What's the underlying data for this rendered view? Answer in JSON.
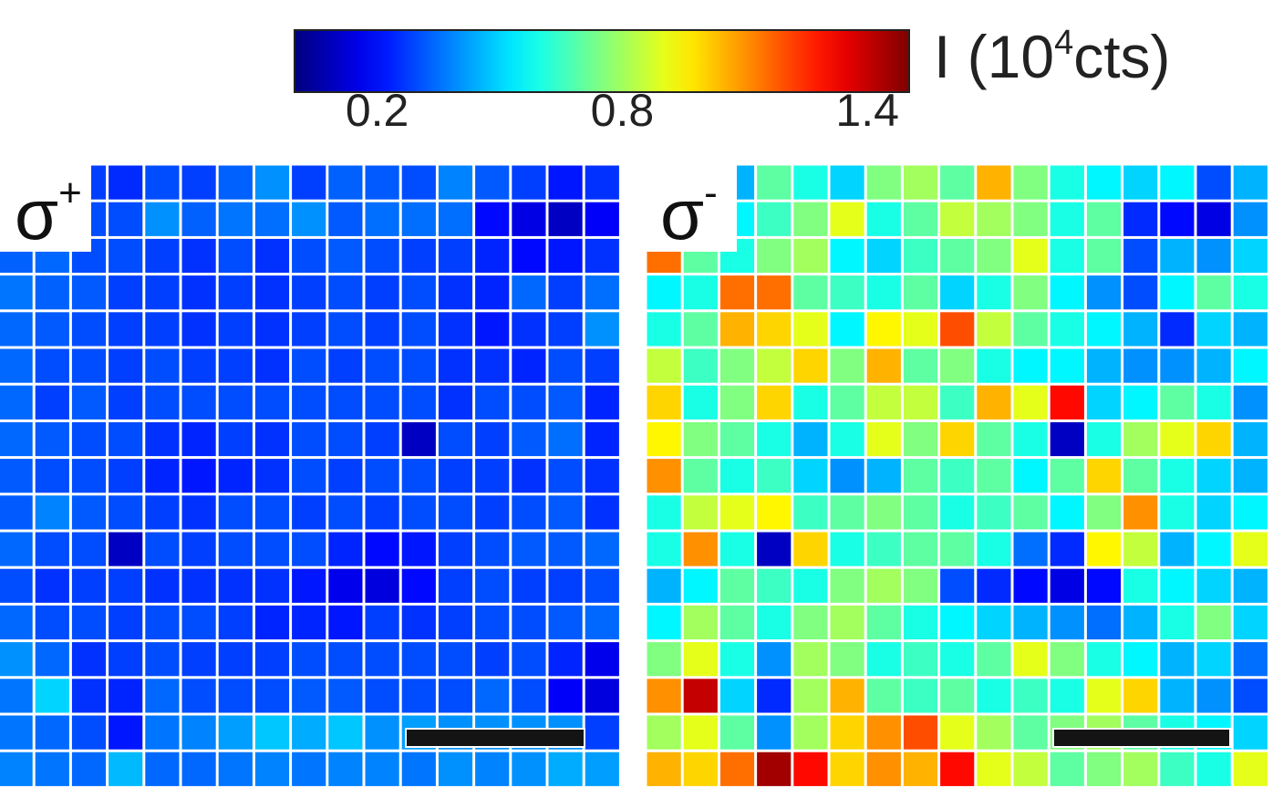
{
  "colorbar": {
    "label_main": "I (10",
    "label_sup": "4",
    "label_tail": "cts)",
    "ticks": [
      "0.2",
      "0.8",
      "1.4"
    ],
    "tick_values": [
      0.2,
      0.8,
      1.4
    ],
    "range": [
      0.0,
      1.5
    ],
    "colormap": "jet"
  },
  "panels": {
    "left": {
      "label": "σ",
      "sup": "+"
    },
    "right": {
      "label": "σ",
      "sup": "-"
    }
  },
  "chart_data": [
    {
      "type": "heatmap",
      "name_label": "σ+",
      "colormap": "jet",
      "zlim": [
        0.0,
        1.5
      ],
      "rows": 17,
      "cols": 17,
      "values": [
        [
          0.35,
          0.3,
          0.28,
          0.25,
          0.3,
          0.28,
          0.33,
          0.4,
          0.28,
          0.33,
          0.32,
          0.3,
          0.38,
          0.32,
          0.28,
          0.22,
          0.26
        ],
        [
          0.35,
          0.32,
          0.3,
          0.3,
          0.4,
          0.33,
          0.36,
          0.35,
          0.4,
          0.32,
          0.35,
          0.35,
          0.35,
          0.2,
          0.15,
          0.1,
          0.18
        ],
        [
          0.33,
          0.34,
          0.3,
          0.3,
          0.28,
          0.26,
          0.3,
          0.26,
          0.3,
          0.32,
          0.3,
          0.28,
          0.28,
          0.24,
          0.2,
          0.22,
          0.26
        ],
        [
          0.36,
          0.33,
          0.32,
          0.28,
          0.28,
          0.26,
          0.28,
          0.26,
          0.28,
          0.3,
          0.28,
          0.3,
          0.26,
          0.24,
          0.34,
          0.28,
          0.35
        ],
        [
          0.34,
          0.32,
          0.3,
          0.28,
          0.28,
          0.26,
          0.28,
          0.26,
          0.28,
          0.3,
          0.28,
          0.3,
          0.26,
          0.22,
          0.26,
          0.28,
          0.4
        ],
        [
          0.34,
          0.3,
          0.3,
          0.28,
          0.3,
          0.28,
          0.28,
          0.26,
          0.3,
          0.28,
          0.3,
          0.3,
          0.26,
          0.26,
          0.24,
          0.3,
          0.28
        ],
        [
          0.34,
          0.28,
          0.32,
          0.28,
          0.3,
          0.3,
          0.3,
          0.3,
          0.3,
          0.3,
          0.3,
          0.3,
          0.26,
          0.3,
          0.3,
          0.32,
          0.24
        ],
        [
          0.34,
          0.32,
          0.3,
          0.3,
          0.26,
          0.24,
          0.28,
          0.26,
          0.3,
          0.3,
          0.28,
          0.1,
          0.3,
          0.28,
          0.32,
          0.35,
          0.24
        ],
        [
          0.32,
          0.3,
          0.3,
          0.28,
          0.24,
          0.22,
          0.24,
          0.26,
          0.3,
          0.28,
          0.3,
          0.3,
          0.28,
          0.28,
          0.26,
          0.3,
          0.26
        ],
        [
          0.32,
          0.38,
          0.32,
          0.3,
          0.28,
          0.26,
          0.3,
          0.3,
          0.28,
          0.3,
          0.28,
          0.3,
          0.3,
          0.28,
          0.3,
          0.32,
          0.26
        ],
        [
          0.34,
          0.3,
          0.3,
          0.1,
          0.3,
          0.28,
          0.3,
          0.3,
          0.3,
          0.24,
          0.2,
          0.22,
          0.28,
          0.3,
          0.32,
          0.32,
          0.34
        ],
        [
          0.3,
          0.26,
          0.28,
          0.28,
          0.26,
          0.26,
          0.26,
          0.26,
          0.22,
          0.16,
          0.14,
          0.2,
          0.28,
          0.3,
          0.28,
          0.28,
          0.3
        ],
        [
          0.34,
          0.3,
          0.3,
          0.28,
          0.3,
          0.3,
          0.28,
          0.24,
          0.24,
          0.22,
          0.28,
          0.26,
          0.28,
          0.3,
          0.3,
          0.32,
          0.34
        ],
        [
          0.4,
          0.34,
          0.26,
          0.28,
          0.3,
          0.28,
          0.28,
          0.28,
          0.3,
          0.3,
          0.3,
          0.3,
          0.3,
          0.28,
          0.3,
          0.24,
          0.16
        ],
        [
          0.36,
          0.5,
          0.26,
          0.24,
          0.34,
          0.3,
          0.3,
          0.3,
          0.32,
          0.32,
          0.3,
          0.3,
          0.3,
          0.34,
          0.3,
          0.18,
          0.14
        ],
        [
          0.36,
          0.34,
          0.3,
          0.22,
          0.36,
          0.38,
          0.42,
          0.48,
          0.44,
          0.48,
          0.4,
          0.42,
          0.4,
          0.4,
          0.4,
          0.4,
          0.28
        ],
        [
          0.38,
          0.36,
          0.34,
          0.46,
          0.34,
          0.34,
          0.36,
          0.38,
          0.36,
          0.38,
          0.38,
          0.36,
          0.4,
          0.38,
          0.4,
          0.44,
          0.42
        ]
      ]
    },
    {
      "type": "heatmap",
      "name_label": "σ-",
      "colormap": "jet",
      "zlim": [
        0.0,
        1.5
      ],
      "rows": 17,
      "cols": 17,
      "values": [
        [
          0.5,
          0.55,
          0.45,
          0.7,
          0.6,
          0.5,
          0.75,
          0.8,
          0.7,
          1.05,
          0.75,
          0.6,
          0.55,
          0.5,
          0.55,
          0.3,
          0.45
        ],
        [
          0.55,
          0.6,
          0.55,
          0.65,
          0.75,
          0.9,
          0.6,
          0.7,
          0.85,
          0.8,
          0.75,
          0.6,
          0.7,
          0.25,
          0.2,
          0.15,
          0.4
        ],
        [
          1.15,
          0.7,
          0.6,
          0.75,
          0.8,
          0.55,
          0.5,
          0.65,
          0.7,
          0.75,
          0.9,
          0.6,
          0.7,
          0.3,
          0.45,
          0.4,
          0.5
        ],
        [
          0.55,
          0.6,
          1.15,
          1.15,
          0.7,
          0.65,
          0.6,
          0.7,
          0.5,
          0.6,
          0.75,
          0.55,
          0.4,
          0.3,
          0.55,
          0.7,
          0.6
        ],
        [
          0.6,
          0.7,
          1.05,
          1.0,
          0.9,
          0.55,
          0.95,
          0.9,
          1.2,
          0.85,
          0.7,
          0.6,
          0.55,
          0.45,
          0.25,
          0.5,
          0.45
        ],
        [
          0.85,
          0.65,
          0.75,
          0.85,
          1.0,
          0.75,
          1.05,
          0.7,
          0.75,
          0.6,
          0.55,
          0.55,
          0.45,
          0.4,
          0.4,
          0.45,
          0.55
        ],
        [
          1.0,
          0.6,
          0.75,
          1.0,
          0.6,
          0.7,
          0.85,
          0.85,
          0.65,
          1.05,
          0.9,
          1.3,
          0.5,
          0.55,
          0.7,
          0.6,
          0.4
        ],
        [
          0.95,
          0.75,
          0.7,
          0.6,
          0.45,
          0.6,
          0.9,
          0.75,
          1.0,
          0.7,
          0.6,
          0.1,
          0.6,
          0.8,
          0.9,
          1.0,
          0.45
        ],
        [
          1.1,
          0.7,
          0.6,
          0.65,
          0.5,
          0.4,
          0.45,
          0.7,
          0.65,
          0.7,
          0.55,
          0.7,
          1.0,
          0.7,
          0.6,
          0.5,
          0.45
        ],
        [
          0.6,
          0.85,
          0.9,
          0.95,
          0.65,
          0.7,
          0.75,
          0.7,
          0.6,
          0.65,
          0.7,
          0.55,
          0.75,
          1.1,
          0.6,
          0.5,
          0.55
        ],
        [
          0.6,
          1.1,
          0.6,
          0.1,
          1.0,
          0.6,
          0.65,
          0.7,
          0.7,
          0.6,
          0.35,
          0.25,
          0.95,
          0.85,
          0.45,
          0.55,
          0.9
        ],
        [
          0.45,
          0.55,
          0.7,
          0.65,
          0.6,
          0.75,
          0.8,
          0.75,
          0.3,
          0.25,
          0.2,
          0.15,
          0.2,
          0.6,
          0.55,
          0.5,
          0.45
        ],
        [
          0.55,
          0.8,
          0.7,
          0.6,
          0.75,
          0.8,
          0.7,
          0.6,
          0.55,
          0.5,
          0.45,
          0.4,
          0.35,
          0.45,
          0.6,
          0.75,
          0.5
        ],
        [
          0.75,
          0.9,
          0.6,
          0.4,
          0.8,
          0.75,
          0.6,
          0.65,
          0.6,
          0.7,
          0.9,
          0.75,
          0.6,
          0.55,
          0.45,
          0.5,
          0.35
        ],
        [
          1.1,
          1.4,
          0.5,
          0.25,
          0.8,
          1.05,
          0.7,
          0.65,
          0.7,
          0.6,
          0.65,
          0.6,
          0.9,
          1.0,
          0.45,
          0.4,
          0.3
        ],
        [
          0.8,
          0.9,
          0.7,
          0.4,
          0.8,
          1.0,
          1.1,
          1.2,
          0.9,
          0.8,
          0.7,
          0.75,
          0.8,
          0.7,
          0.6,
          0.55,
          0.5
        ],
        [
          1.05,
          1.0,
          1.15,
          1.45,
          1.3,
          1.0,
          1.1,
          1.05,
          1.3,
          0.9,
          0.85,
          0.7,
          0.75,
          0.8,
          0.65,
          0.6,
          0.9
        ]
      ]
    }
  ]
}
